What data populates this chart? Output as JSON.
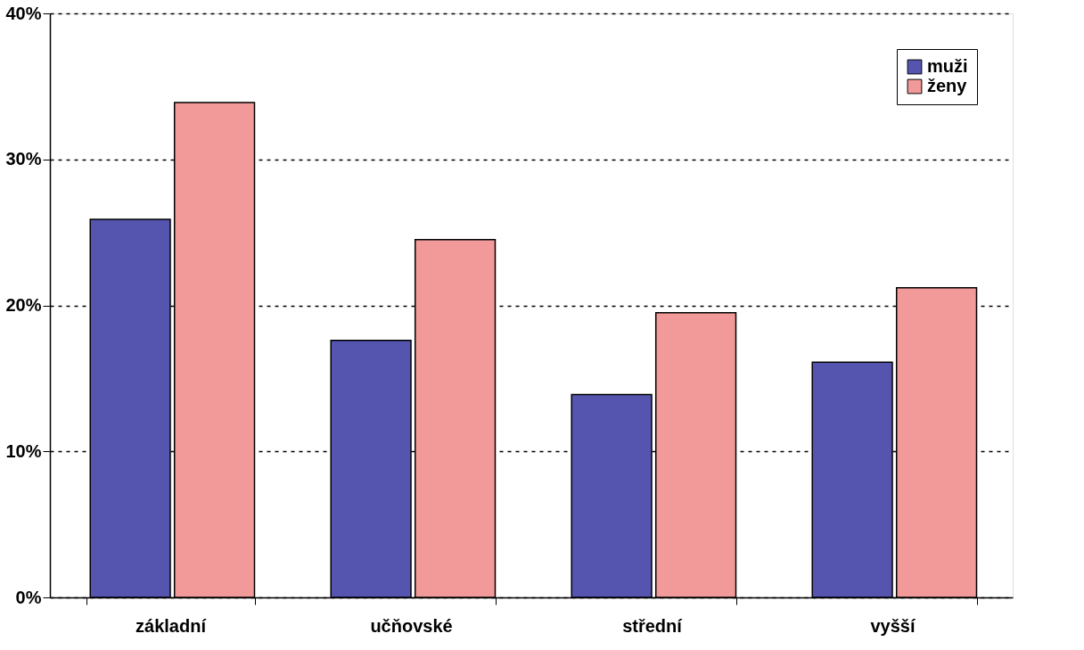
{
  "chart_data": {
    "type": "bar",
    "categories": [
      "základní",
      "učňovské",
      "střední",
      "vyšší"
    ],
    "series": [
      {
        "name": "muži",
        "color": "#5555b0",
        "values": [
          25.9,
          17.6,
          13.9,
          16.1
        ]
      },
      {
        "name": "ženy",
        "color": "#f29a9a",
        "values": [
          33.9,
          24.5,
          19.5,
          21.2
        ]
      }
    ],
    "ylim": [
      0,
      40
    ],
    "yticks": [
      {
        "value": 0,
        "label": "0%"
      },
      {
        "value": 10,
        "label": "10%"
      },
      {
        "value": 20,
        "label": "20%"
      },
      {
        "value": 30,
        "label": "30%"
      },
      {
        "value": 40,
        "label": "40%"
      }
    ],
    "grid": "y",
    "legend": "top right"
  }
}
